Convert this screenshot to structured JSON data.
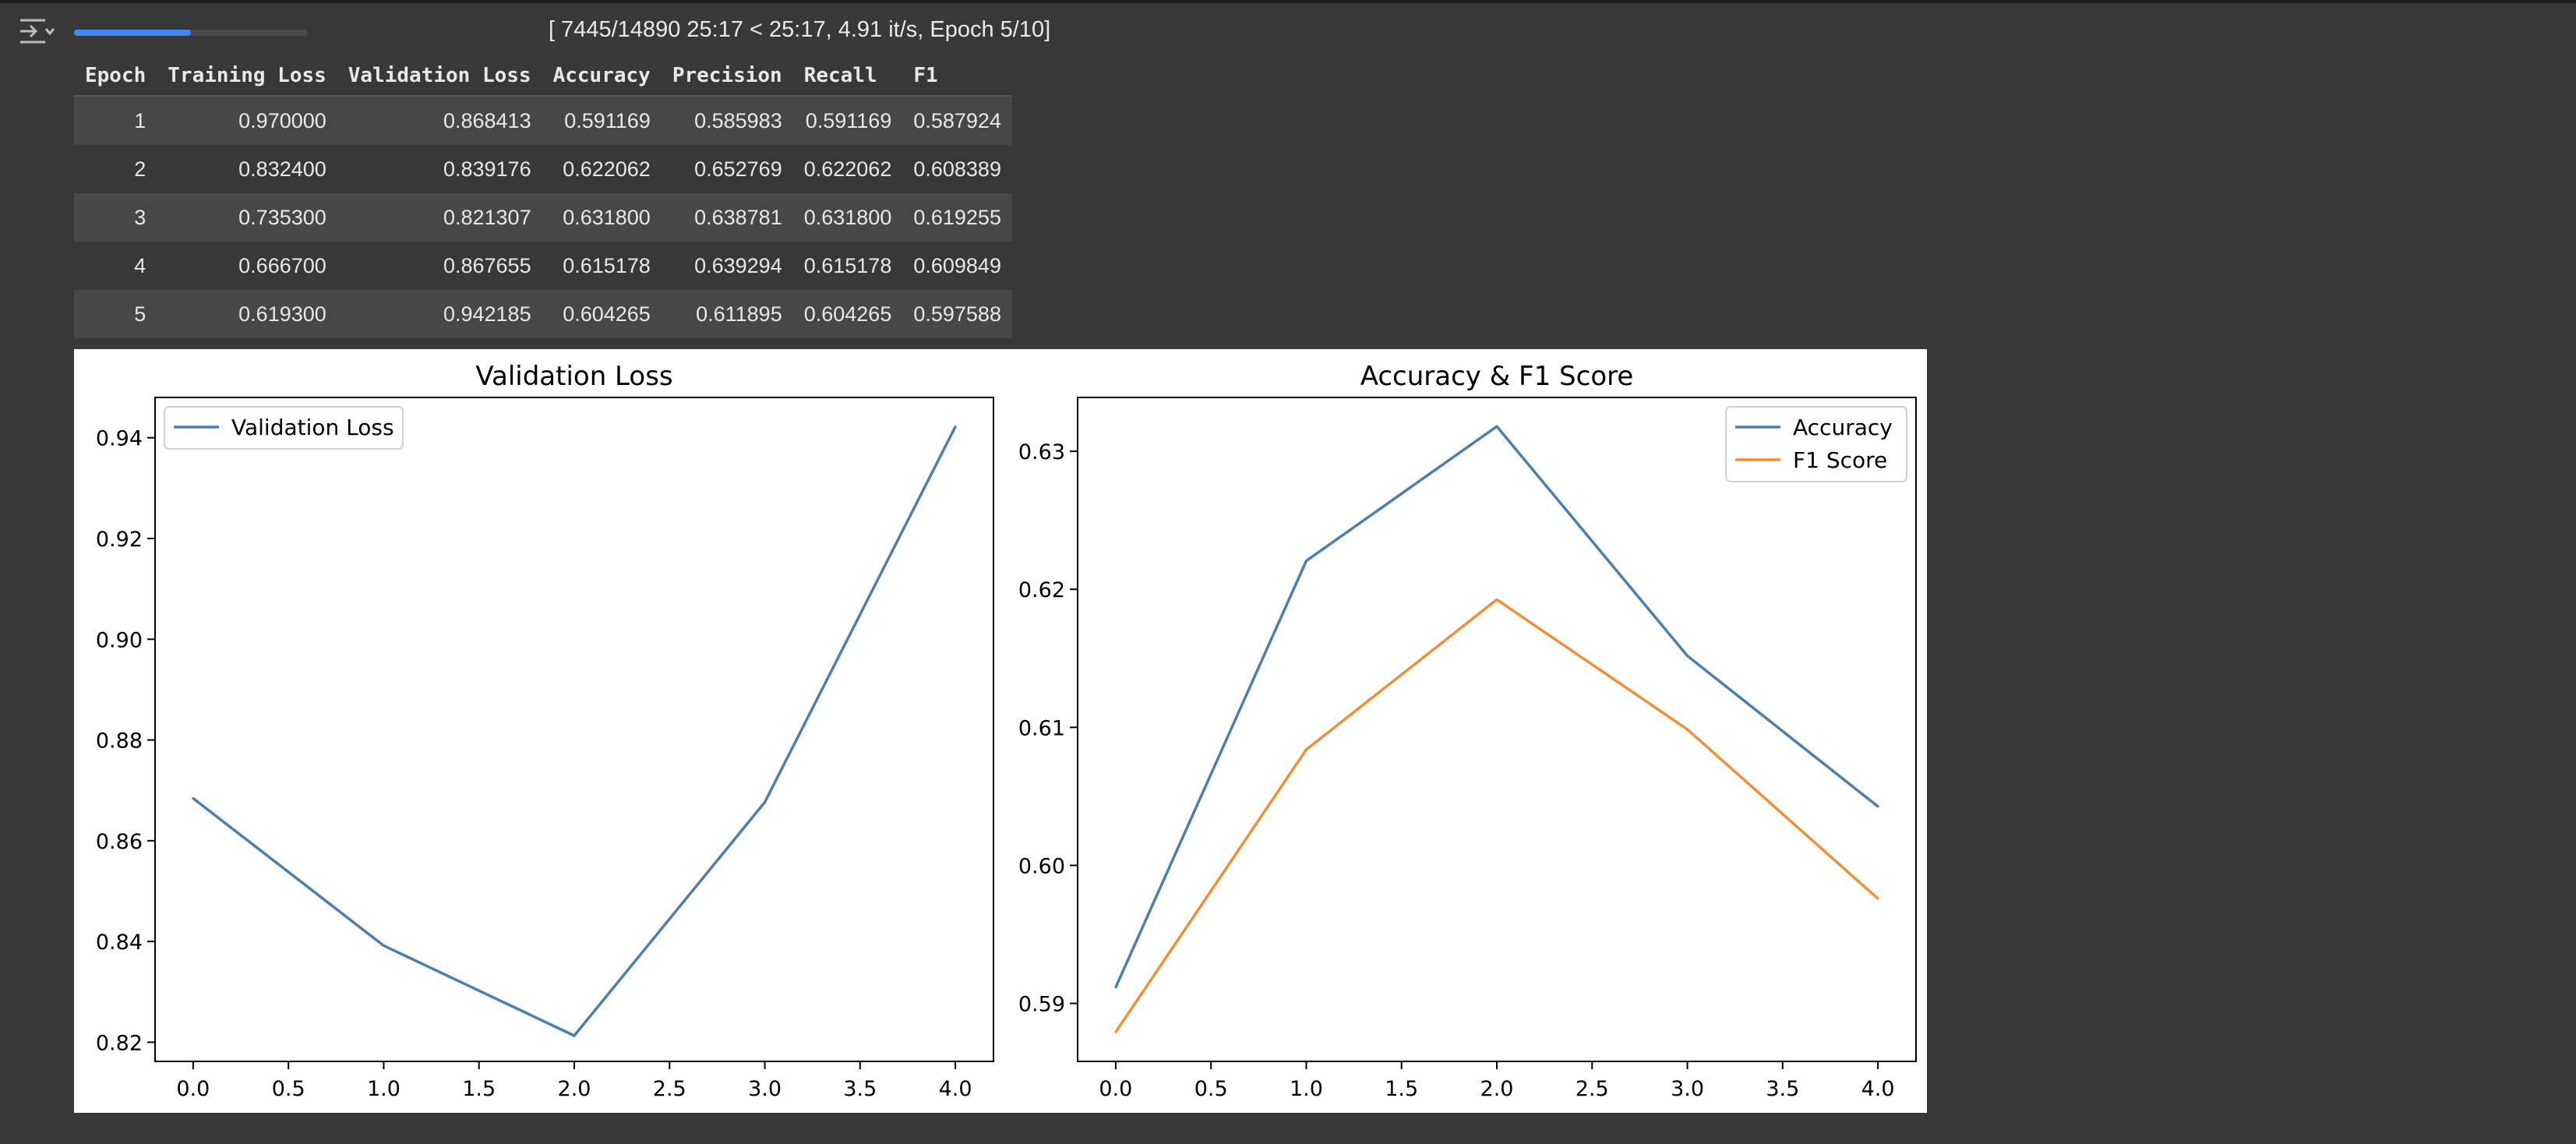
{
  "output_toggle_icon": "output-toggle-icon",
  "progress": {
    "fraction": 0.5,
    "text": "[ 7445/14890 25:17 < 25:17, 4.91 it/s, Epoch 5/10]",
    "bar_color": "#4285f4"
  },
  "table": {
    "headers": [
      "Epoch",
      "Training Loss",
      "Validation Loss",
      "Accuracy",
      "Precision",
      "Recall",
      "F1"
    ],
    "rows": [
      [
        "1",
        "0.970000",
        "0.868413",
        "0.591169",
        "0.585983",
        "0.591169",
        "0.587924"
      ],
      [
        "2",
        "0.832400",
        "0.839176",
        "0.622062",
        "0.652769",
        "0.622062",
        "0.608389"
      ],
      [
        "3",
        "0.735300",
        "0.821307",
        "0.631800",
        "0.638781",
        "0.631800",
        "0.619255"
      ],
      [
        "4",
        "0.666700",
        "0.867655",
        "0.615178",
        "0.639294",
        "0.615178",
        "0.609849"
      ],
      [
        "5",
        "0.619300",
        "0.942185",
        "0.604265",
        "0.611895",
        "0.604265",
        "0.597588"
      ]
    ]
  },
  "chart_data": [
    {
      "type": "line",
      "title": "Validation Loss",
      "xlabel": "",
      "ylabel": "",
      "x": [
        0,
        1,
        2,
        3,
        4
      ],
      "xlim": [
        -0.2,
        4.2
      ],
      "ylim": [
        0.8162,
        0.948
      ],
      "xticks": [
        "0.0",
        "0.5",
        "1.0",
        "1.5",
        "2.0",
        "2.5",
        "3.0",
        "3.5",
        "4.0"
      ],
      "yticks": [
        "0.82",
        "0.84",
        "0.86",
        "0.88",
        "0.90",
        "0.92",
        "0.94"
      ],
      "grid": false,
      "legend": "upper-left",
      "series": [
        {
          "name": "Validation Loss",
          "color": "#4a7fb0",
          "values": [
            0.868413,
            0.839176,
            0.821307,
            0.867655,
            0.942185
          ]
        }
      ]
    },
    {
      "type": "line",
      "title": "Accuracy & F1 Score",
      "xlabel": "",
      "ylabel": "",
      "x": [
        0,
        1,
        2,
        3,
        4
      ],
      "xlim": [
        -0.2,
        4.2
      ],
      "ylim": [
        0.5858,
        0.6339
      ],
      "xticks": [
        "0.0",
        "0.5",
        "1.0",
        "1.5",
        "2.0",
        "2.5",
        "3.0",
        "3.5",
        "4.0"
      ],
      "yticks": [
        "0.59",
        "0.60",
        "0.61",
        "0.62",
        "0.63"
      ],
      "grid": false,
      "legend": "upper-right",
      "series": [
        {
          "name": "Accuracy",
          "color": "#4a7fb0",
          "values": [
            0.591169,
            0.622062,
            0.6318,
            0.615178,
            0.604265
          ]
        },
        {
          "name": "F1 Score",
          "color": "#f08f3a",
          "values": [
            0.587924,
            0.608389,
            0.619255,
            0.609849,
            0.597588
          ]
        }
      ]
    }
  ]
}
